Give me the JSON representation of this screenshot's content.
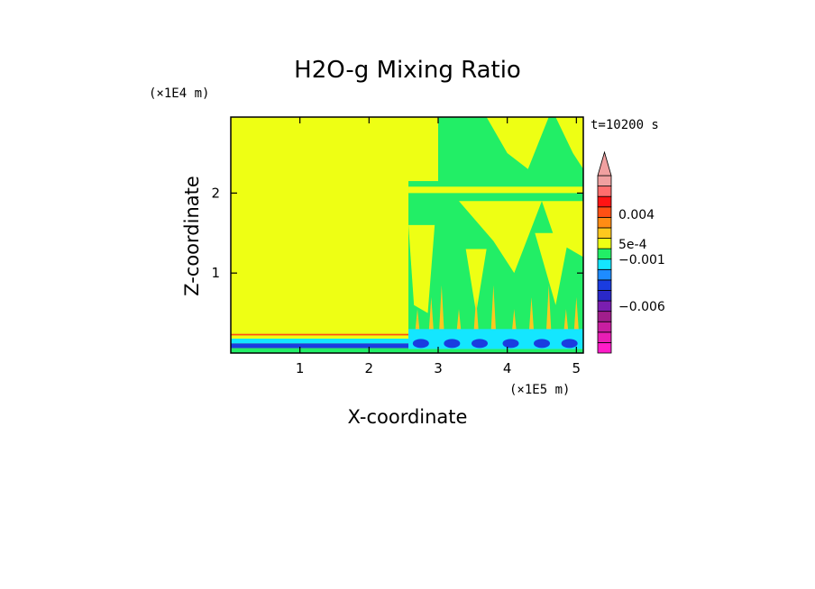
{
  "chart_data": {
    "type": "heatmap",
    "title": "H2O-g Mixing Ratio",
    "xlabel": "X-coordinate",
    "ylabel": "Z-coordinate",
    "x_scale_label": "(×1E5 m)",
    "y_scale_label": "(×1E4 m)",
    "time_label": "t=10200 s",
    "xlim": [
      0,
      5.1
    ],
    "ylim": [
      0,
      2.95
    ],
    "x_ticks": [
      "1",
      "2",
      "3",
      "4",
      "5"
    ],
    "x_tick_values": [
      1,
      2,
      3,
      4,
      5
    ],
    "y_ticks": [
      "1",
      "2"
    ],
    "y_tick_values": [
      1,
      2
    ],
    "colorbar": {
      "labels": [
        "0.004",
        "5e-4",
        "−0.001",
        "−0.006"
      ],
      "levels": [
        {
          "value": -0.009,
          "color": "#ff1cc8"
        },
        {
          "value": -0.008,
          "color": "#e81eb4"
        },
        {
          "value": -0.007,
          "color": "#c81ea0"
        },
        {
          "value": -0.006,
          "color": "#a01e8c"
        },
        {
          "value": -0.005,
          "color": "#7a1eb0"
        },
        {
          "value": -0.004,
          "color": "#2a28c8"
        },
        {
          "value": -0.003,
          "color": "#1a3ce0"
        },
        {
          "value": -0.002,
          "color": "#1e8cff"
        },
        {
          "value": -0.001,
          "color": "#14e6ff"
        },
        {
          "value": 0.0,
          "color": "#22ee66"
        },
        {
          "value": 0.0005,
          "color": "#eeff14"
        },
        {
          "value": 0.001,
          "color": "#ffc81e"
        },
        {
          "value": 0.002,
          "color": "#ff8c14"
        },
        {
          "value": 0.003,
          "color": "#ff5014"
        },
        {
          "value": 0.004,
          "color": "#ff1414"
        },
        {
          "value": 0.005,
          "color": "#ff6e6e"
        },
        {
          "value": 0.006,
          "color": "#f0a0a0"
        }
      ]
    },
    "colors": {
      "background": "#eeff14",
      "upper_right": "#22ee66",
      "surface_cyan": "#14e6ff",
      "surface_blue": "#1a3ce0",
      "surface_red": "#ff5014"
    }
  }
}
